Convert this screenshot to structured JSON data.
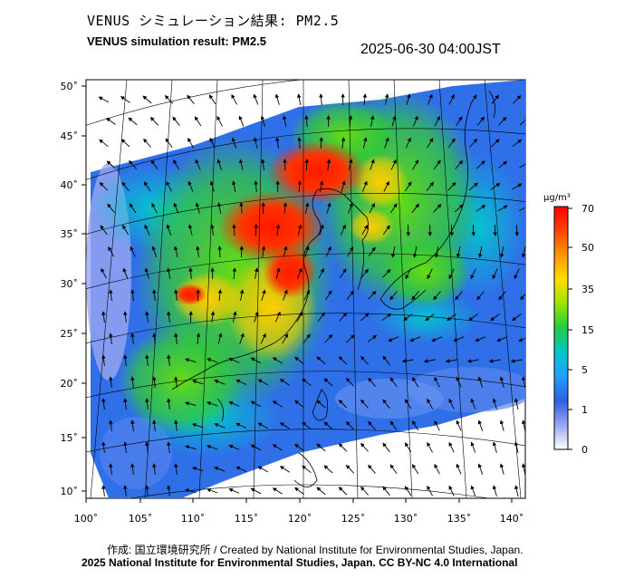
{
  "title_jp": "VENUS シミュレーション結果: PM2.5",
  "title_en": "VENUS simulation result: PM2.5",
  "timestamp": "2025-06-30 04:00JST",
  "credit_line1": "作成: 国立環境研究所 / Created by National Institute for Environmental Studies, Japan.",
  "credit_line2": "2025 National Institute for Environmental Studies, Japan. CC BY-NC 4.0 International",
  "colorbar": {
    "unit": "µg/m³",
    "ticks": [
      "70",
      "50",
      "35",
      "15",
      "5",
      "1",
      "0"
    ],
    "colors": [
      "#ff0000",
      "#ff6a00",
      "#ffcc00",
      "#99e600",
      "#22cc44",
      "#00c8c8",
      "#1ea0ff",
      "#2f5fe0",
      "#9aa6f0",
      "#ffffff"
    ]
  },
  "map": {
    "lon_ticks": [
      "100˚",
      "105˚",
      "110˚",
      "115˚",
      "120˚",
      "125˚",
      "130˚",
      "135˚",
      "140˚"
    ],
    "lat_ticks": [
      "50˚",
      "45˚",
      "40˚",
      "35˚",
      "30˚",
      "25˚",
      "20˚",
      "15˚",
      "10˚"
    ],
    "lon_range": [
      100,
      141
    ],
    "lat_range": [
      9,
      51
    ]
  }
}
